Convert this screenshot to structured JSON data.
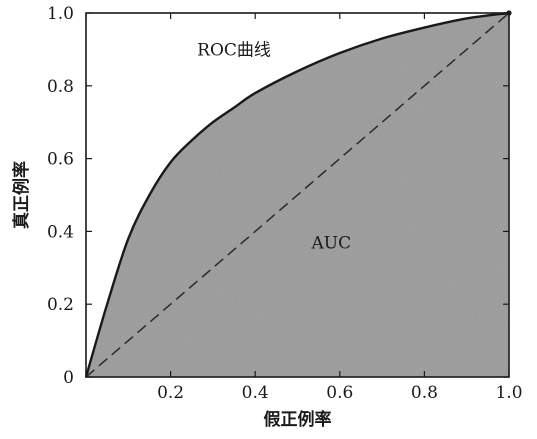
{
  "chart_data": {
    "type": "area",
    "title": "",
    "xlabel": "假正例率",
    "ylabel": "真正例率",
    "xlim": [
      0,
      1
    ],
    "ylim": [
      0,
      1
    ],
    "x_ticks": [
      0,
      0.2,
      0.4,
      0.6,
      0.8,
      1.0
    ],
    "x_tick_labels": [
      "0",
      "0.2",
      "0.4",
      "0.6",
      "0.8",
      "1.0"
    ],
    "y_ticks": [
      0,
      0.2,
      0.4,
      0.6,
      0.8,
      1.0
    ],
    "y_tick_labels": [
      "0",
      "0.2",
      "0.4",
      "0.6",
      "0.8",
      "1.0"
    ],
    "grid": false,
    "legend": "none",
    "series": [
      {
        "name": "ROC曲线",
        "style": "solid",
        "fill_under": true,
        "x": [
          0,
          0.05,
          0.1,
          0.15,
          0.2,
          0.25,
          0.3,
          0.35,
          0.4,
          0.5,
          0.6,
          0.7,
          0.8,
          0.9,
          1.0
        ],
        "y": [
          0,
          0.2,
          0.38,
          0.5,
          0.59,
          0.65,
          0.7,
          0.74,
          0.78,
          0.84,
          0.89,
          0.93,
          0.96,
          0.985,
          1.0
        ]
      },
      {
        "style": "dashed",
        "fill_under": false,
        "x": [
          0,
          1
        ],
        "y": [
          0,
          1
        ]
      }
    ],
    "annotations": [
      {
        "text": "ROC曲线",
        "x": 0.35,
        "y": 0.9
      },
      {
        "text": "AUC",
        "x": 0.58,
        "y": 0.37
      }
    ],
    "colors": {
      "area_fill": "#a4a4a4",
      "curve": "#1a1a1a",
      "diagonal": "#2a2a2a",
      "frame": "#1a1a1a"
    }
  }
}
